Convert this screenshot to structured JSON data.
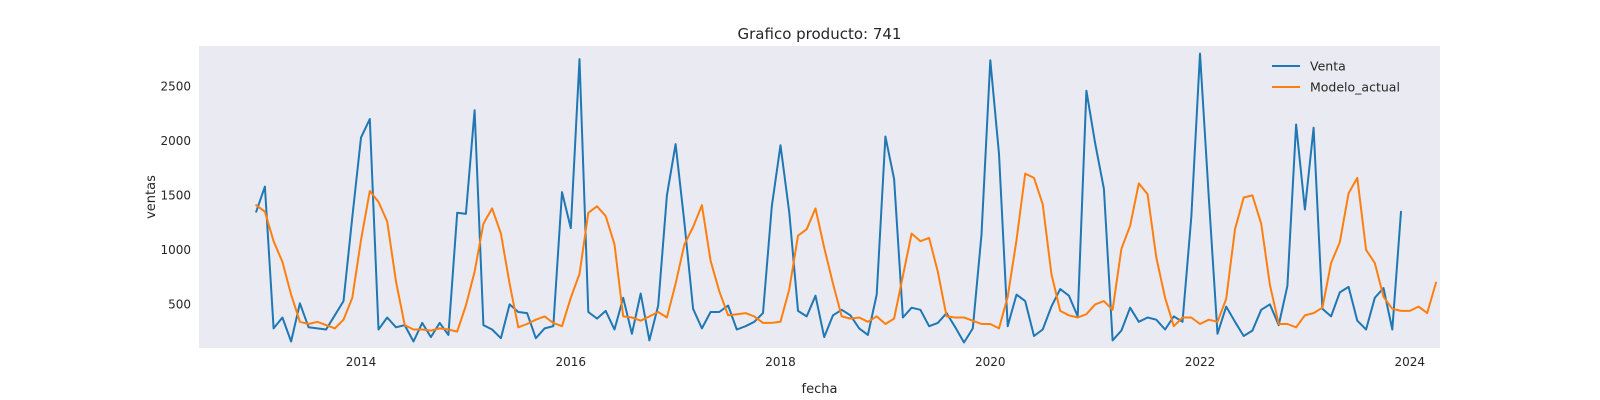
{
  "chart_data": {
    "type": "line",
    "title": "Grafico producto: 741",
    "xlabel": "fecha",
    "ylabel": "ventas",
    "x_start": "2013-01",
    "x_end": "2023-12",
    "x_frequency": "monthly",
    "xlim": [
      "2012-06-15",
      "2024-04-15"
    ],
    "ylim": [
      100,
      2870
    ],
    "xticks": [
      "2014",
      "2016",
      "2018",
      "2020",
      "2022",
      "2024"
    ],
    "yticks": [
      500,
      1000,
      1500,
      2000,
      2500
    ],
    "grid": false,
    "background": "#eaeaf2",
    "legend_position": "top-right",
    "series": [
      {
        "name": "Venta",
        "color": "#1f77b4",
        "values": [
          1350,
          1580,
          280,
          380,
          160,
          510,
          290,
          280,
          270,
          400,
          530,
          1300,
          2030,
          2200,
          270,
          380,
          290,
          310,
          160,
          330,
          200,
          330,
          220,
          1340,
          1330,
          2280,
          310,
          270,
          190,
          500,
          430,
          420,
          190,
          280,
          300,
          1530,
          1200,
          2750,
          430,
          370,
          440,
          270,
          560,
          230,
          600,
          170,
          490,
          1500,
          1970,
          1250,
          460,
          280,
          430,
          430,
          490,
          270,
          300,
          340,
          420,
          1400,
          1960,
          1340,
          440,
          390,
          580,
          200,
          400,
          450,
          400,
          280,
          220,
          590,
          2040,
          1650,
          380,
          470,
          450,
          300,
          330,
          420,
          290,
          150,
          280,
          1140,
          2740,
          1880,
          300,
          590,
          530,
          210,
          270,
          480,
          640,
          580,
          390,
          2460,
          1980,
          1560,
          170,
          260,
          470,
          340,
          380,
          360,
          270,
          390,
          340,
          1300,
          2800,
          1480,
          230,
          480,
          340,
          210,
          260,
          450,
          500,
          310,
          670,
          2150,
          1370,
          2120,
          460,
          390,
          610,
          660,
          350,
          270,
          560,
          650,
          270,
          1350
        ]
      },
      {
        "name": "Modelo_actual",
        "color": "#ff7f0e",
        "values": [
          1410,
          1350,
          1080,
          890,
          590,
          340,
          320,
          340,
          310,
          280,
          360,
          560,
          1090,
          1540,
          1440,
          1260,
          710,
          310,
          270,
          270,
          260,
          280,
          270,
          250,
          490,
          800,
          1240,
          1380,
          1150,
          690,
          290,
          320,
          360,
          390,
          330,
          300,
          560,
          780,
          1340,
          1400,
          1310,
          1050,
          390,
          380,
          350,
          390,
          430,
          380,
          690,
          1050,
          1210,
          1410,
          900,
          620,
          400,
          410,
          420,
          390,
          330,
          330,
          340,
          640,
          1130,
          1190,
          1380,
          1020,
          690,
          390,
          370,
          380,
          340,
          390,
          320,
          370,
          760,
          1150,
          1080,
          1110,
          800,
          390,
          380,
          380,
          350,
          320,
          320,
          280,
          570,
          1090,
          1700,
          1660,
          1420,
          780,
          440,
          400,
          380,
          410,
          500,
          530,
          450,
          1010,
          1220,
          1610,
          1510,
          930,
          560,
          300,
          380,
          380,
          320,
          360,
          340,
          550,
          1190,
          1480,
          1500,
          1240,
          680,
          320,
          320,
          290,
          400,
          420,
          470,
          880,
          1070,
          1520,
          1660,
          1000,
          880,
          570,
          460,
          440,
          440,
          480,
          420,
          700
        ]
      }
    ]
  }
}
